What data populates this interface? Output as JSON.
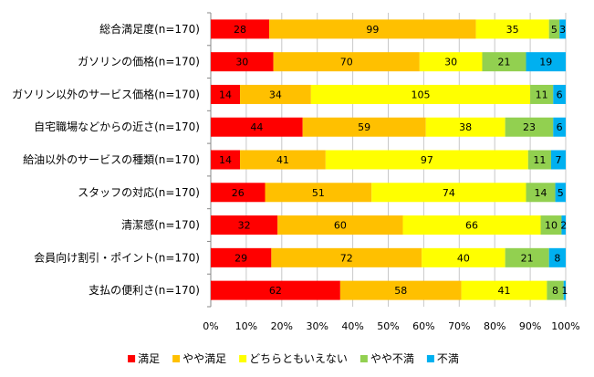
{
  "chart_data": {
    "type": "bar",
    "orientation": "horizontal",
    "stacking": "percent",
    "categories": [
      "総合満足度(n=170)",
      "ガソリンの価格(n=170)",
      "ガソリン以外のサービス価格(n=170)",
      "自宅職場などからの近さ(n=170)",
      "給油以外のサービスの種類(n=170)",
      "スタッフの対応(n=170)",
      "清潔感(n=170)",
      "会員向け割引・ポイント(n=170)",
      "支払の便利さ(n=170)"
    ],
    "series": [
      {
        "name": "満足",
        "color": "#ff0000",
        "values": [
          28,
          30,
          14,
          44,
          14,
          26,
          32,
          29,
          62
        ]
      },
      {
        "name": "やや満足",
        "color": "#ffc000",
        "values": [
          99,
          70,
          34,
          59,
          41,
          51,
          60,
          72,
          58
        ]
      },
      {
        "name": "どちらともいえない",
        "color": "#ffff00",
        "values": [
          35,
          30,
          105,
          38,
          97,
          74,
          66,
          40,
          41
        ]
      },
      {
        "name": "やや不満",
        "color": "#92d050",
        "values": [
          5,
          21,
          11,
          23,
          11,
          14,
          10,
          21,
          8
        ]
      },
      {
        "name": "不満",
        "color": "#00b0f0",
        "values": [
          3,
          19,
          6,
          6,
          7,
          5,
          2,
          8,
          1
        ]
      }
    ],
    "x_ticks": [
      "0%",
      "10%",
      "20%",
      "30%",
      "40%",
      "50%",
      "60%",
      "70%",
      "80%",
      "90%",
      "100%"
    ],
    "xlim": [
      0,
      100
    ],
    "grid": true,
    "legend_position": "bottom",
    "title": "",
    "xlabel": "",
    "ylabel": ""
  }
}
